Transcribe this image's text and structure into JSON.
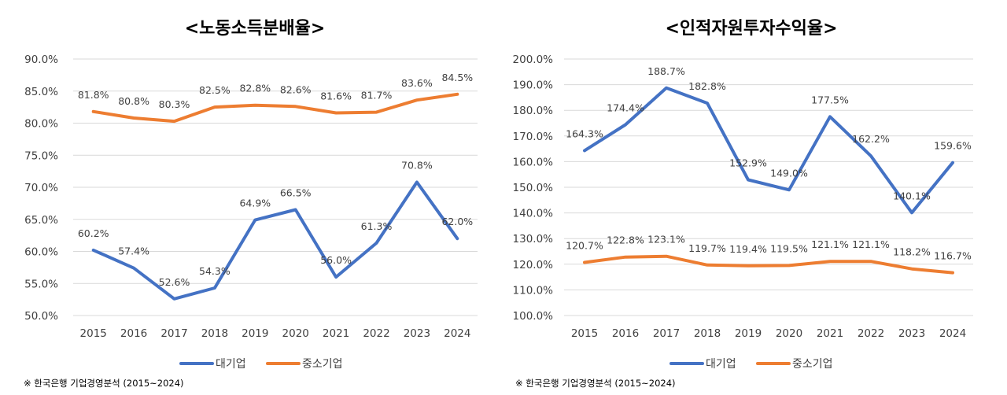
{
  "colors": {
    "large": "#4472C4",
    "sme": "#ED7D31",
    "grid": "#D9D9D9",
    "text": "#404040"
  },
  "chart_data": [
    {
      "type": "line",
      "title": "<노동소득분배율>",
      "categories": [
        "2015",
        "2016",
        "2017",
        "2018",
        "2019",
        "2020",
        "2021",
        "2022",
        "2023",
        "2024"
      ],
      "ylim": [
        50,
        90
      ],
      "y_ticks": [
        "50.0%",
        "55.0%",
        "60.0%",
        "65.0%",
        "70.0%",
        "75.0%",
        "80.0%",
        "85.0%",
        "90.0%"
      ],
      "grid": true,
      "legend_position": "bottom",
      "series": [
        {
          "name": "대기업",
          "values": [
            60.2,
            57.4,
            52.6,
            54.3,
            64.9,
            66.5,
            56.0,
            61.3,
            70.8,
            62.0
          ],
          "labels": [
            "60.2%",
            "57.4%",
            "52.6%",
            "54.3%",
            "64.9%",
            "66.5%",
            "56.0%",
            "61.3%",
            "70.8%",
            "62.0%"
          ]
        },
        {
          "name": "중소기업",
          "values": [
            81.8,
            80.8,
            80.3,
            82.5,
            82.8,
            82.6,
            81.6,
            81.7,
            83.6,
            84.5
          ],
          "labels": [
            "81.8%",
            "80.8%",
            "80.3%",
            "82.5%",
            "82.8%",
            "82.6%",
            "81.6%",
            "81.7%",
            "83.6%",
            "84.5%"
          ]
        }
      ]
    },
    {
      "type": "line",
      "title": "<인적자원투자수익율>",
      "categories": [
        "2015",
        "2016",
        "2017",
        "2018",
        "2019",
        "2020",
        "2021",
        "2022",
        "2023",
        "2024"
      ],
      "ylim": [
        100,
        200
      ],
      "y_ticks": [
        "100.0%",
        "110.0%",
        "120.0%",
        "130.0%",
        "140.0%",
        "150.0%",
        "160.0%",
        "170.0%",
        "180.0%",
        "190.0%",
        "200.0%"
      ],
      "grid": true,
      "legend_position": "bottom",
      "series": [
        {
          "name": "대기업",
          "values": [
            164.3,
            174.4,
            188.7,
            182.8,
            152.9,
            149.0,
            177.5,
            162.2,
            140.1,
            159.6
          ],
          "labels": [
            "164.3%",
            "174.4%",
            "188.7%",
            "182.8%",
            "152.9%",
            "149.0%",
            "177.5%",
            "162.2%",
            "140.1%",
            "159.6%"
          ]
        },
        {
          "name": "중소기업",
          "values": [
            120.7,
            122.8,
            123.1,
            119.7,
            119.4,
            119.5,
            121.1,
            121.1,
            118.2,
            116.7
          ],
          "labels": [
            "120.7%",
            "122.8%",
            "123.1%",
            "119.7%",
            "119.4%",
            "119.5%",
            "121.1%",
            "121.1%",
            "118.2%",
            "116.7%"
          ]
        }
      ]
    }
  ],
  "source_note": "※ 한국은행 기업경영분석 (2015~2024)"
}
